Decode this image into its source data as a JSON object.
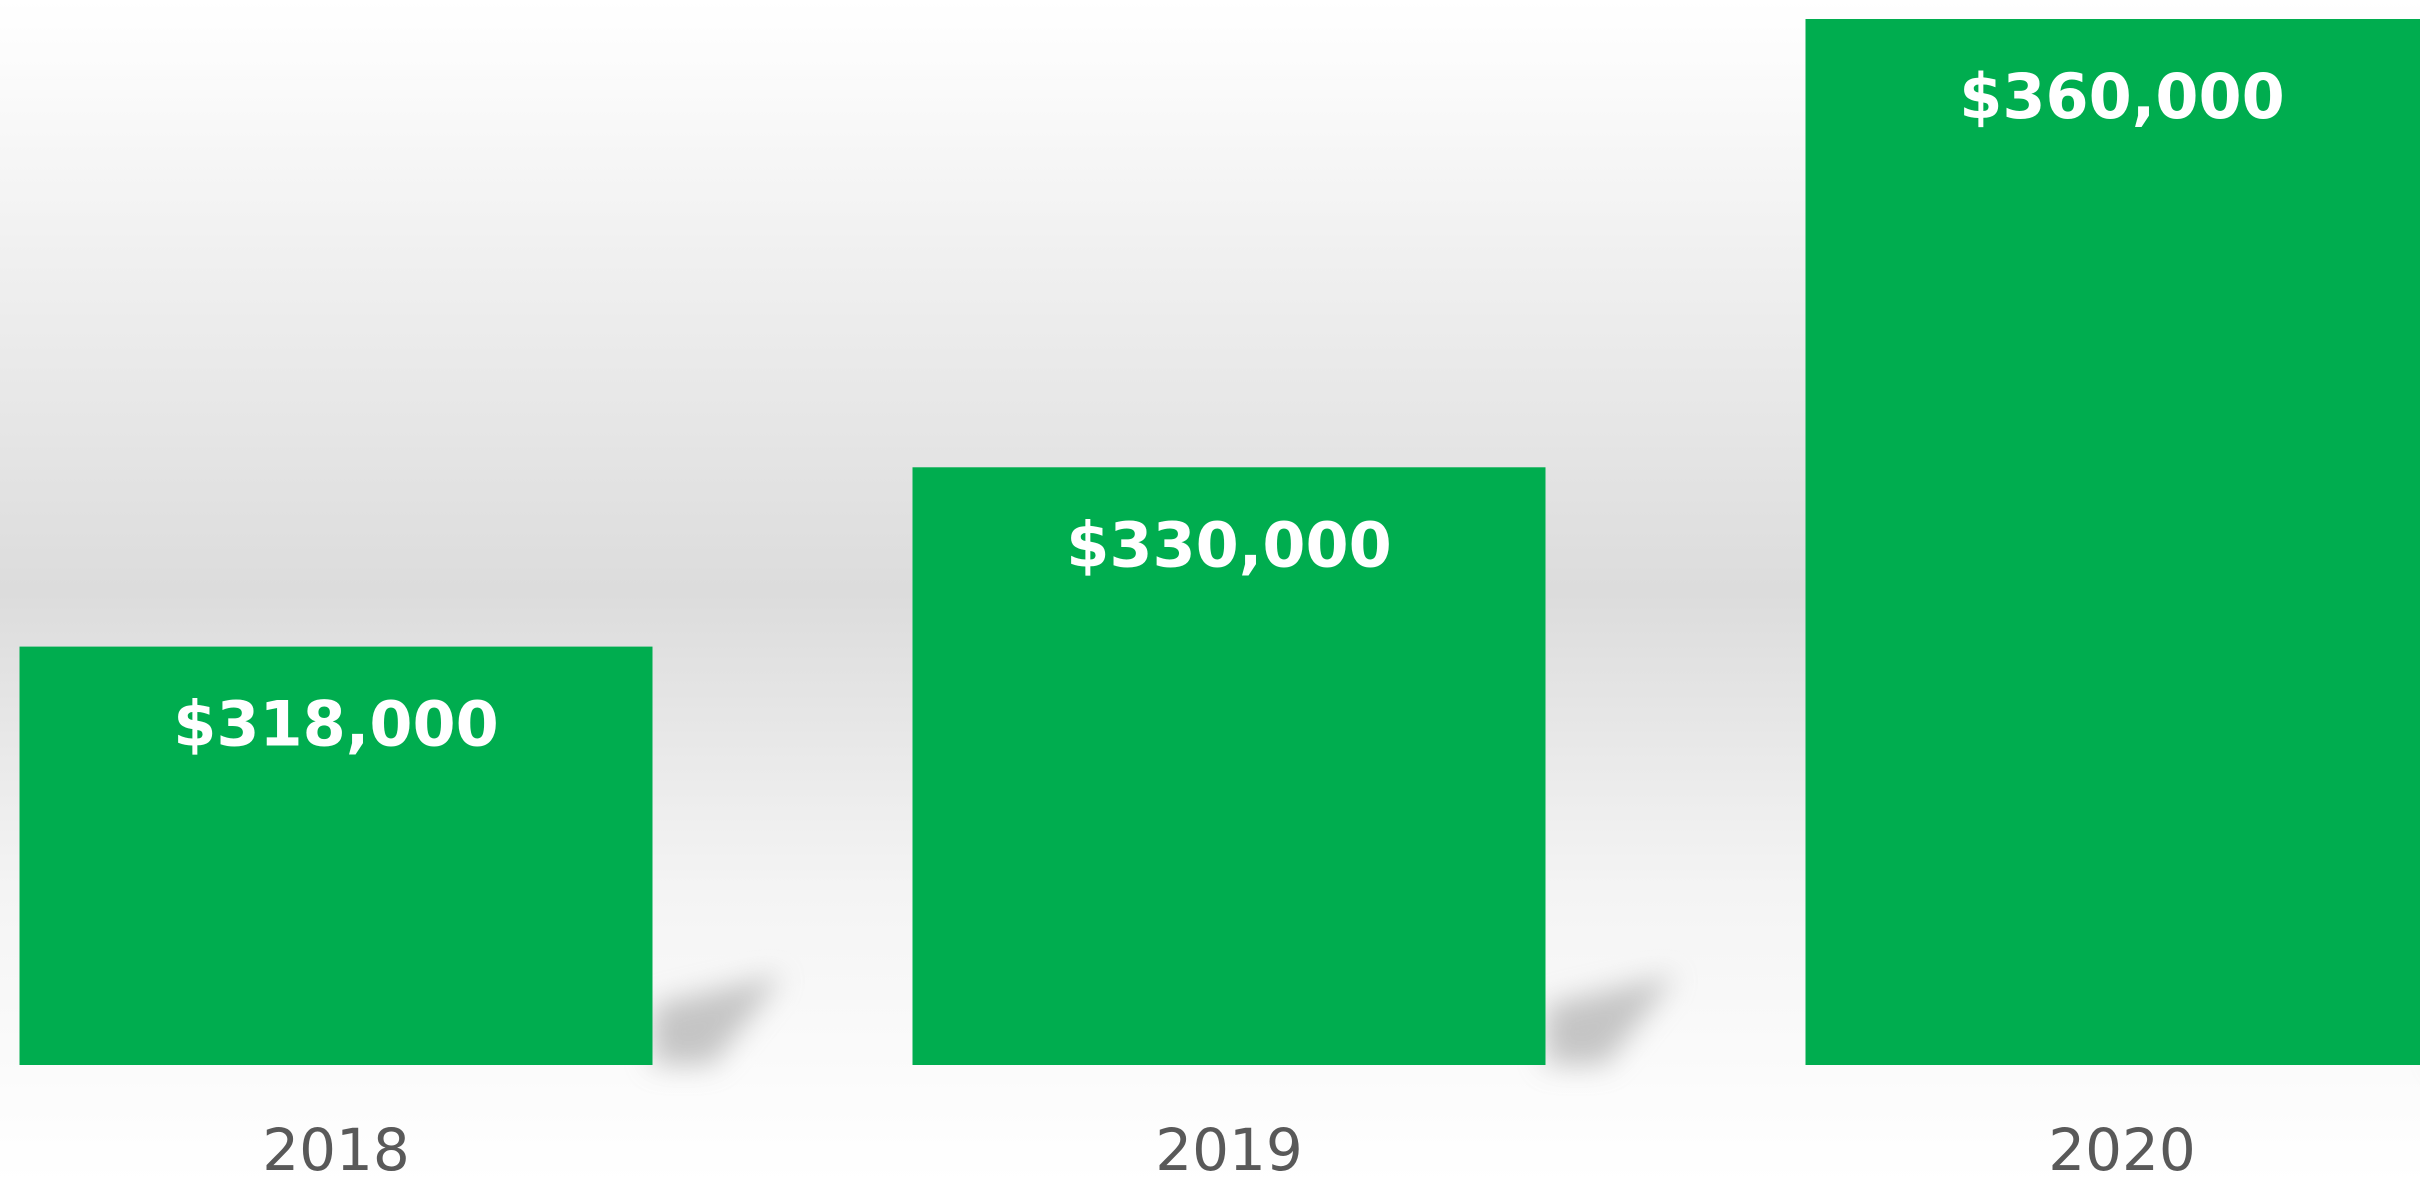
{
  "chart_data": {
    "type": "bar",
    "categories": [
      "2018",
      "2019",
      "2020"
    ],
    "values": [
      318000,
      330000,
      360000
    ],
    "value_labels": [
      "$318,000",
      "$330,000",
      "$360,000"
    ],
    "color": "#00ad4f",
    "ylim": [
      290000,
      360000
    ]
  }
}
